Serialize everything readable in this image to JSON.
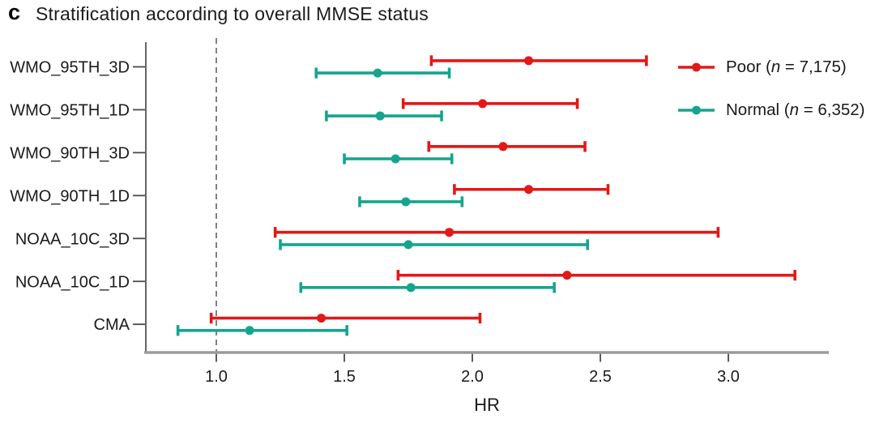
{
  "panel_label": "c",
  "title": "Stratification according to overall MMSE status",
  "legend": {
    "entries": [
      {
        "series": "Poor",
        "prefix": "Poor (",
        "n": "n",
        "suffix": " = 7,175)",
        "color": "#e11917"
      },
      {
        "series": "Normal",
        "prefix": "Normal (",
        "n": "n",
        "suffix": " = 6,352)",
        "color": "#17a48e"
      }
    ]
  },
  "colors": {
    "poor": "#e11917",
    "normal": "#17a48e",
    "axis_line": "#9b9b9b",
    "spine": "#3f3f3f",
    "tick": "#4a4a4a",
    "reference_line": "#4a4a4a",
    "text": "#1a1a1a"
  },
  "chart_data": {
    "type": "forest",
    "title": "Stratification according to overall MMSE status",
    "xlabel": "HR",
    "ylabel": "",
    "xlim": [
      0.73,
      3.39
    ],
    "xticks": [
      1.0,
      1.5,
      2.0,
      2.5,
      3.0
    ],
    "xtick_labels": [
      "1.0",
      "1.5",
      "2.0",
      "2.5",
      "3.0"
    ],
    "reference_line": 1.0,
    "grid": false,
    "legend_position": "top-right",
    "categories": [
      "WMO_95TH_3D",
      "WMO_95TH_1D",
      "WMO_90TH_3D",
      "WMO_90TH_1D",
      "NOAA_10C_3D",
      "NOAA_10C_1D",
      "CMA"
    ],
    "series": [
      {
        "name": "Poor (n = 7,175)",
        "color": "#e11917",
        "points": [
          {
            "category": "WMO_95TH_3D",
            "hr": 2.22,
            "lo": 1.84,
            "hi": 2.68
          },
          {
            "category": "WMO_95TH_1D",
            "hr": 2.04,
            "lo": 1.73,
            "hi": 2.41
          },
          {
            "category": "WMO_90TH_3D",
            "hr": 2.12,
            "lo": 1.83,
            "hi": 2.44
          },
          {
            "category": "WMO_90TH_1D",
            "hr": 2.22,
            "lo": 1.93,
            "hi": 2.53
          },
          {
            "category": "NOAA_10C_3D",
            "hr": 1.91,
            "lo": 1.23,
            "hi": 2.96
          },
          {
            "category": "NOAA_10C_1D",
            "hr": 2.37,
            "lo": 1.71,
            "hi": 3.26
          },
          {
            "category": "CMA",
            "hr": 1.41,
            "lo": 0.98,
            "hi": 2.03
          }
        ]
      },
      {
        "name": "Normal (n = 6,352)",
        "color": "#17a48e",
        "points": [
          {
            "category": "WMO_95TH_3D",
            "hr": 1.63,
            "lo": 1.39,
            "hi": 1.91
          },
          {
            "category": "WMO_95TH_1D",
            "hr": 1.64,
            "lo": 1.43,
            "hi": 1.88
          },
          {
            "category": "WMO_90TH_3D",
            "hr": 1.7,
            "lo": 1.5,
            "hi": 1.92
          },
          {
            "category": "WMO_90TH_1D",
            "hr": 1.74,
            "lo": 1.56,
            "hi": 1.96
          },
          {
            "category": "NOAA_10C_3D",
            "hr": 1.75,
            "lo": 1.25,
            "hi": 2.45
          },
          {
            "category": "NOAA_10C_1D",
            "hr": 1.76,
            "lo": 1.33,
            "hi": 2.32
          },
          {
            "category": "CMA",
            "hr": 1.13,
            "lo": 0.85,
            "hi": 1.51
          }
        ]
      }
    ]
  }
}
